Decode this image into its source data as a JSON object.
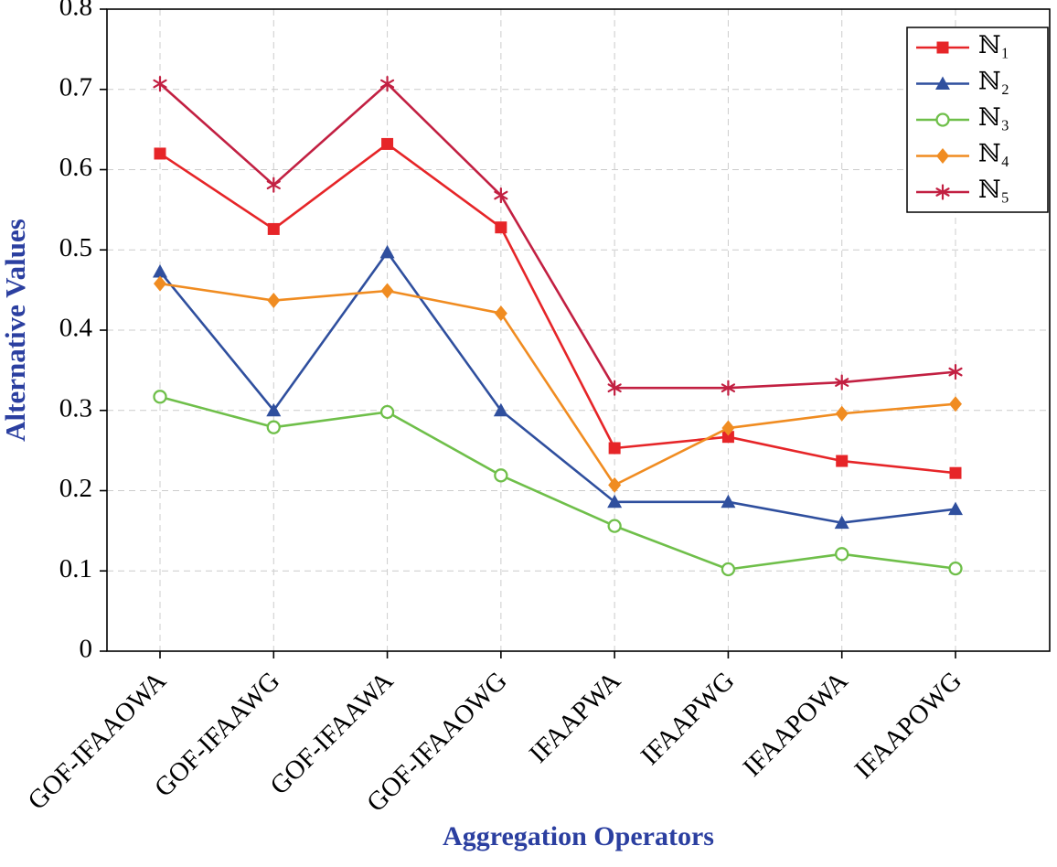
{
  "chart_data": {
    "type": "line",
    "title": "",
    "xlabel": "Aggregation Operators",
    "ylabel": "Alternative Values",
    "ylim": [
      0,
      0.8
    ],
    "ytick_labels": [
      "0",
      "0.1",
      "0.2",
      "0.3",
      "0.4",
      "0.5",
      "0.6",
      "0.7",
      "0.8"
    ],
    "yticks": [
      0,
      0.1,
      0.2,
      0.3,
      0.4,
      0.5,
      0.6,
      0.7,
      0.8
    ],
    "grid": true,
    "grid_style": "dashed",
    "legend_position": "top-right",
    "categories": [
      "GOF-IFAAOWA",
      "GOF-IFAAWG",
      "GOF-IFAAWA",
      "GOF-IFAAOWG",
      "IFAAPWA",
      "IFAAPWG",
      "IFAAPOWA",
      "IFAAPOWG"
    ],
    "series": [
      {
        "name": "ℕ₁",
        "marker": "square",
        "color": "#e62528",
        "values": [
          0.62,
          0.526,
          0.632,
          0.528,
          0.253,
          0.267,
          0.237,
          0.222
        ]
      },
      {
        "name": "ℕ₂",
        "marker": "triangle",
        "color": "#2f4f9e",
        "values": [
          0.473,
          0.3,
          0.497,
          0.3,
          0.186,
          0.186,
          0.16,
          0.177
        ]
      },
      {
        "name": "ℕ₃",
        "marker": "circle-open",
        "color": "#6fbf4a",
        "values": [
          0.317,
          0.279,
          0.298,
          0.219,
          0.156,
          0.102,
          0.121,
          0.103
        ]
      },
      {
        "name": "ℕ₄",
        "marker": "diamond",
        "color": "#f08c21",
        "values": [
          0.458,
          0.437,
          0.449,
          0.421,
          0.207,
          0.278,
          0.296,
          0.308
        ]
      },
      {
        "name": "ℕ₅",
        "marker": "asterisk",
        "color": "#c22042",
        "values": [
          0.707,
          0.581,
          0.707,
          0.568,
          0.328,
          0.328,
          0.335,
          0.348
        ]
      }
    ],
    "colors": {
      "axis_title": "#2b3fa0",
      "tick_label": "#000000",
      "grid": "#cccccc",
      "frame": "#000000",
      "legend_background": "#ffffff",
      "legend_border": "#000000"
    }
  }
}
